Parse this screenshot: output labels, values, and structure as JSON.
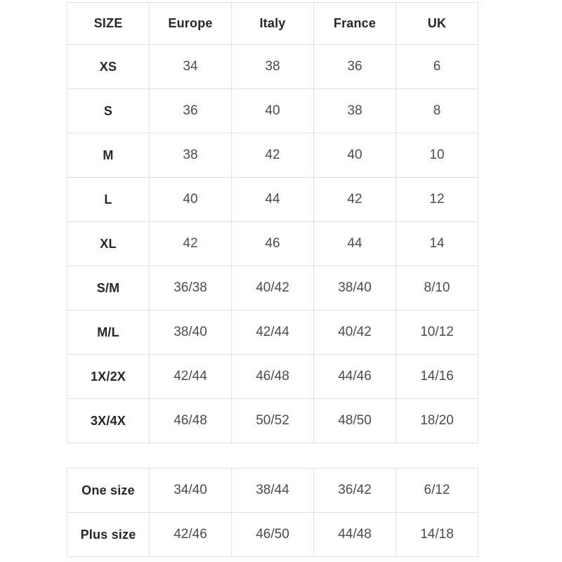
{
  "page": {
    "background": "#ffffff"
  },
  "colors": {
    "border": "#e1e1e1",
    "label_text": "#26262e",
    "value_text": "#4b4b57"
  },
  "chart_data": {
    "type": "table",
    "columns": [
      "SIZE",
      "Europe",
      "Italy",
      "France",
      "UK"
    ],
    "main_rows": [
      {
        "size": "XS",
        "values": [
          "34",
          "38",
          "36",
          "6"
        ]
      },
      {
        "size": "S",
        "values": [
          "36",
          "40",
          "38",
          "8"
        ]
      },
      {
        "size": "M",
        "values": [
          "38",
          "42",
          "40",
          "10"
        ]
      },
      {
        "size": "L",
        "values": [
          "40",
          "44",
          "42",
          "12"
        ]
      },
      {
        "size": "XL",
        "values": [
          "42",
          "46",
          "44",
          "14"
        ]
      },
      {
        "size": "S/M",
        "values": [
          "36/38",
          "40/42",
          "38/40",
          "8/10"
        ]
      },
      {
        "size": "M/L",
        "values": [
          "38/40",
          "42/44",
          "40/42",
          "10/12"
        ]
      },
      {
        "size": "1X/2X",
        "values": [
          "42/44",
          "46/48",
          "44/46",
          "14/16"
        ]
      },
      {
        "size": "3X/4X",
        "values": [
          "46/48",
          "50/52",
          "48/50",
          "18/20"
        ]
      }
    ],
    "secondary_rows": [
      {
        "size": "One size",
        "values": [
          "34/40",
          "38/44",
          "36/42",
          "6/12"
        ]
      },
      {
        "size": "Plus size",
        "values": [
          "42/46",
          "46/50",
          "44/48",
          "14/18"
        ]
      }
    ]
  }
}
